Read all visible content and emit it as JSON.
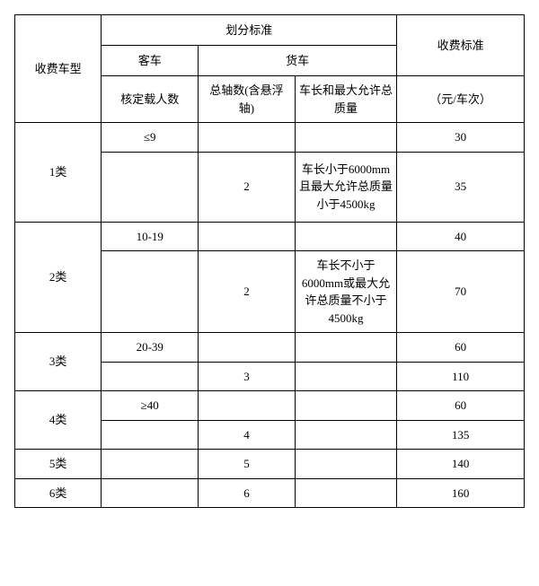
{
  "header": {
    "classification_standard": "划分标准",
    "fee_standard": "收费标准",
    "vehicle_type": "收费车型",
    "passenger": "客车",
    "truck": "货车",
    "seats": "核定载人数",
    "axles": "总轴数(含悬浮轴)",
    "length_mass": "车长和最大允许总质量",
    "fee_unit": "（元/车次）"
  },
  "categories": [
    {
      "label": "1类",
      "rows": [
        {
          "seats": "≤9",
          "axles": "",
          "length_mass": "",
          "fee": "30"
        },
        {
          "seats": "",
          "axles": "2",
          "length_mass": "车长小于6000mm且最大允许总质量小于4500kg",
          "fee": "35"
        }
      ]
    },
    {
      "label": "2类",
      "rows": [
        {
          "seats": "10-19",
          "axles": "",
          "length_mass": "",
          "fee": "40"
        },
        {
          "seats": "",
          "axles": "2",
          "length_mass": "车长不小于6000mm或最大允许总质量不小于4500kg",
          "fee": "70"
        }
      ]
    },
    {
      "label": "3类",
      "rows": [
        {
          "seats": "20-39",
          "axles": "",
          "length_mass": "",
          "fee": "60"
        },
        {
          "seats": "",
          "axles": "3",
          "length_mass": "",
          "fee": "110"
        }
      ]
    },
    {
      "label": "4类",
      "rows": [
        {
          "seats": "≥40",
          "axles": "",
          "length_mass": "",
          "fee": "60"
        },
        {
          "seats": "",
          "axles": "4",
          "length_mass": "",
          "fee": "135"
        }
      ]
    },
    {
      "label": "5类",
      "rows": [
        {
          "seats": "",
          "axles": "5",
          "length_mass": "",
          "fee": "140"
        }
      ]
    },
    {
      "label": "6类",
      "rows": [
        {
          "seats": "",
          "axles": "6",
          "length_mass": "",
          "fee": "160"
        }
      ]
    }
  ],
  "style": {
    "font_family": "SimSun",
    "font_size_pt": 10,
    "border_color": "#000000",
    "background_color": "#ffffff",
    "text_color": "#000000",
    "column_widths_pct": [
      17,
      19,
      19,
      20,
      25
    ]
  }
}
